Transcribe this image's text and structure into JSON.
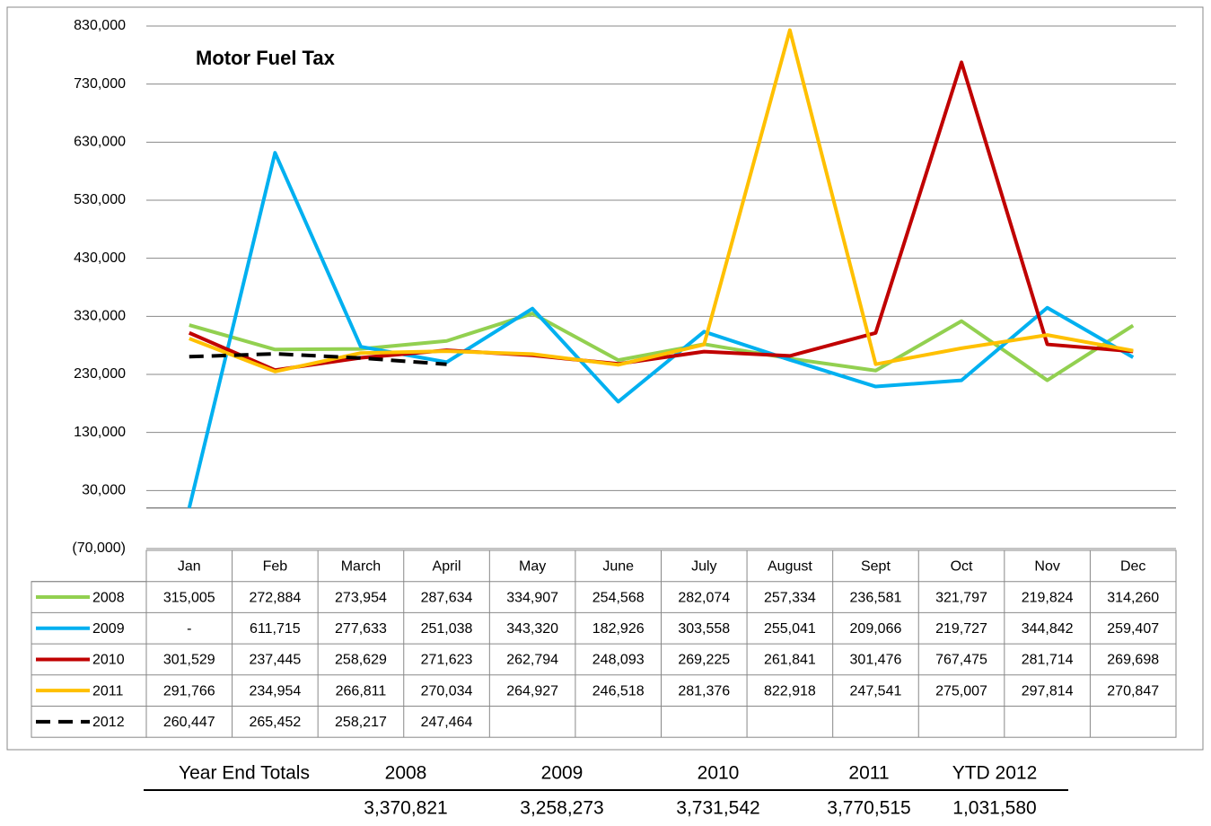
{
  "chart_data": {
    "type": "line",
    "title": "Motor Fuel Tax",
    "categories": [
      "Jan",
      "Feb",
      "March",
      "April",
      "May",
      "June",
      "July",
      "August",
      "Sept",
      "Oct",
      "Nov",
      "Dec"
    ],
    "ylim": [
      -70000,
      830000
    ],
    "yticks": [
      {
        "value": -70000,
        "label": "(70,000)"
      },
      {
        "value": 30000,
        "label": "30,000"
      },
      {
        "value": 130000,
        "label": "130,000"
      },
      {
        "value": 230000,
        "label": "230,000"
      },
      {
        "value": 330000,
        "label": "330,000"
      },
      {
        "value": 430000,
        "label": "430,000"
      },
      {
        "value": 530000,
        "label": "530,000"
      },
      {
        "value": 630000,
        "label": "630,000"
      },
      {
        "value": 730000,
        "label": "730,000"
      },
      {
        "value": 830000,
        "label": "830,000"
      }
    ],
    "grid": true,
    "series": [
      {
        "name": "2008",
        "color": "#92d050",
        "dashed": false,
        "values": [
          315005,
          272884,
          273954,
          287634,
          334907,
          254568,
          282074,
          257334,
          236581,
          321797,
          219824,
          314260
        ],
        "value_labels": [
          "315,005",
          "272,884",
          "273,954",
          "287,634",
          "334,907",
          "254,568",
          "282,074",
          "257,334",
          "236,581",
          "321,797",
          "219,824",
          "314,260"
        ]
      },
      {
        "name": "2009",
        "color": "#00b0f0",
        "dashed": false,
        "values": [
          0,
          611715,
          277633,
          251038,
          343320,
          182926,
          303558,
          255041,
          209066,
          219727,
          344842,
          259407
        ],
        "value_labels": [
          "-",
          "611,715",
          "277,633",
          "251,038",
          "343,320",
          "182,926",
          "303,558",
          "255,041",
          "209,066",
          "219,727",
          "344,842",
          "259,407"
        ]
      },
      {
        "name": "2010",
        "color": "#c00000",
        "dashed": false,
        "values": [
          301529,
          237445,
          258629,
          271623,
          262794,
          248093,
          269225,
          261841,
          301476,
          767475,
          281714,
          269698
        ],
        "value_labels": [
          "301,529",
          "237,445",
          "258,629",
          "271,623",
          "262,794",
          "248,093",
          "269,225",
          "261,841",
          "301,476",
          "767,475",
          "281,714",
          "269,698"
        ]
      },
      {
        "name": "2011",
        "color": "#ffc000",
        "dashed": false,
        "values": [
          291766,
          234954,
          266811,
          270034,
          264927,
          246518,
          281376,
          822918,
          247541,
          275007,
          297814,
          270847
        ],
        "value_labels": [
          "291,766",
          "234,954",
          "266,811",
          "270,034",
          "264,927",
          "246,518",
          "281,376",
          "822,918",
          "247,541",
          "275,007",
          "297,814",
          "270,847"
        ]
      },
      {
        "name": "2012",
        "color": "#000000",
        "dashed": true,
        "values": [
          260447,
          265452,
          258217,
          247464,
          null,
          null,
          null,
          null,
          null,
          null,
          null,
          null
        ],
        "value_labels": [
          "260,447",
          "265,452",
          "258,217",
          "247,464",
          null,
          null,
          null,
          null,
          null,
          null,
          null,
          null
        ]
      }
    ]
  },
  "totals": {
    "title": "Year End Totals",
    "columns": [
      "2008",
      "2009",
      "2010",
      "2011",
      "YTD 2012"
    ],
    "values": [
      3370821,
      3258273,
      3731542,
      3770515,
      1031580
    ],
    "value_labels": [
      "3,370,821",
      "3,258,273",
      "3,731,542",
      "3,770,515",
      "1,031,580"
    ]
  }
}
